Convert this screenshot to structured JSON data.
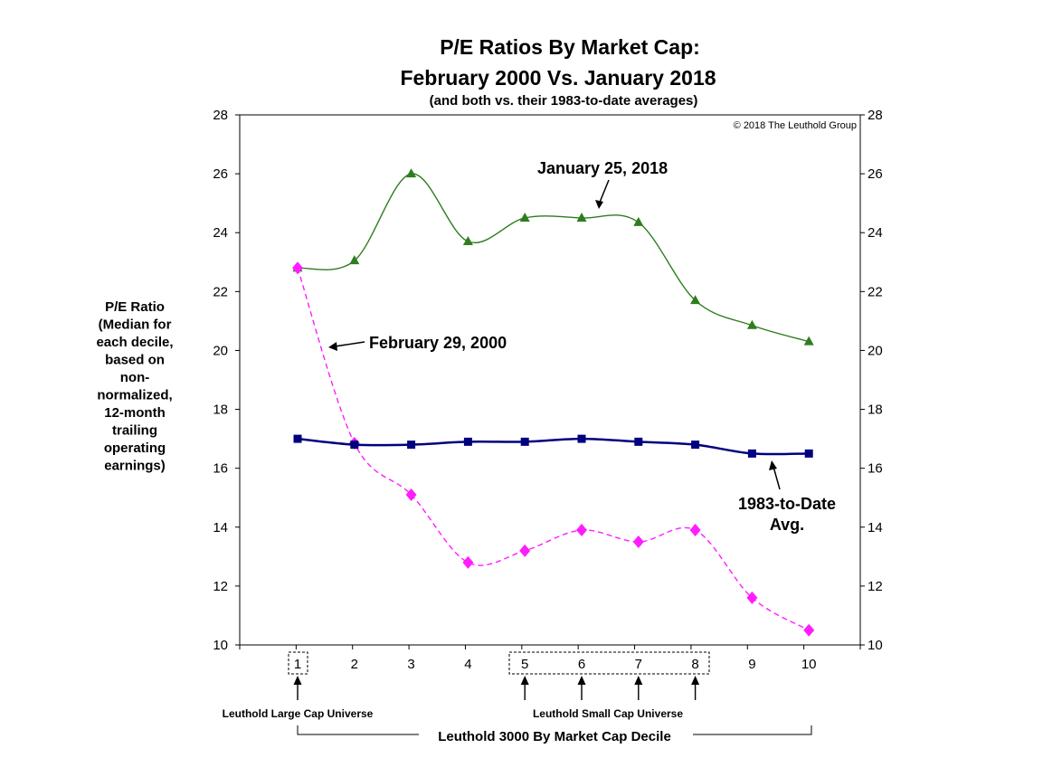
{
  "chart_data": {
    "type": "line",
    "title": "P/E Ratios By Market Cap:",
    "subtitle": "February 2000 Vs. January 2018",
    "subsubtitle": "(and both vs. their 1983-to-date averages)",
    "copyright": "© 2018 The Leuthold Group",
    "ylabel": [
      "P/E Ratio",
      "(Median for",
      "each decile,",
      "based on",
      "non-",
      "normalized,",
      "12-month",
      "trailing",
      "operating",
      "earnings)"
    ],
    "xlabel": "Leuthold 3000 By Market Cap Decile",
    "ylim": [
      10,
      28
    ],
    "yticks": [
      10,
      12,
      14,
      16,
      18,
      20,
      22,
      24,
      26,
      28
    ],
    "x": [
      1,
      2,
      3,
      4,
      5,
      6,
      7,
      8,
      9,
      10
    ],
    "x_tick_labels": [
      "1",
      "2",
      "3",
      "4",
      "5",
      "6",
      "7",
      "8",
      "9",
      "10"
    ],
    "series": [
      {
        "name": "January 25, 2018",
        "color": "#2e7d1e",
        "marker": "triangle",
        "dashed": false,
        "values": [
          22.8,
          23.05,
          26.0,
          23.7,
          24.5,
          24.5,
          24.35,
          21.7,
          20.85,
          20.3
        ]
      },
      {
        "name": "February 29, 2000",
        "color": "#ff1cff",
        "marker": "diamond",
        "dashed": true,
        "values": [
          22.8,
          16.85,
          15.1,
          12.8,
          13.2,
          13.9,
          13.5,
          13.9,
          11.6,
          10.5
        ]
      },
      {
        "name": "1983-to-Date Avg.",
        "color": "#000080",
        "marker": "square",
        "dashed": false,
        "values": [
          17.0,
          16.8,
          16.8,
          16.9,
          16.9,
          17.0,
          16.9,
          16.8,
          16.5,
          16.5
        ]
      }
    ],
    "annotations": {
      "jan2018": "January 25, 2018",
      "feb2000": "February 29, 2000",
      "avg_line1": "1983-to-Date",
      "avg_line2": "Avg.",
      "large_cap": "Leuthold Large Cap Universe",
      "small_cap": "Leuthold Small Cap Universe"
    }
  }
}
